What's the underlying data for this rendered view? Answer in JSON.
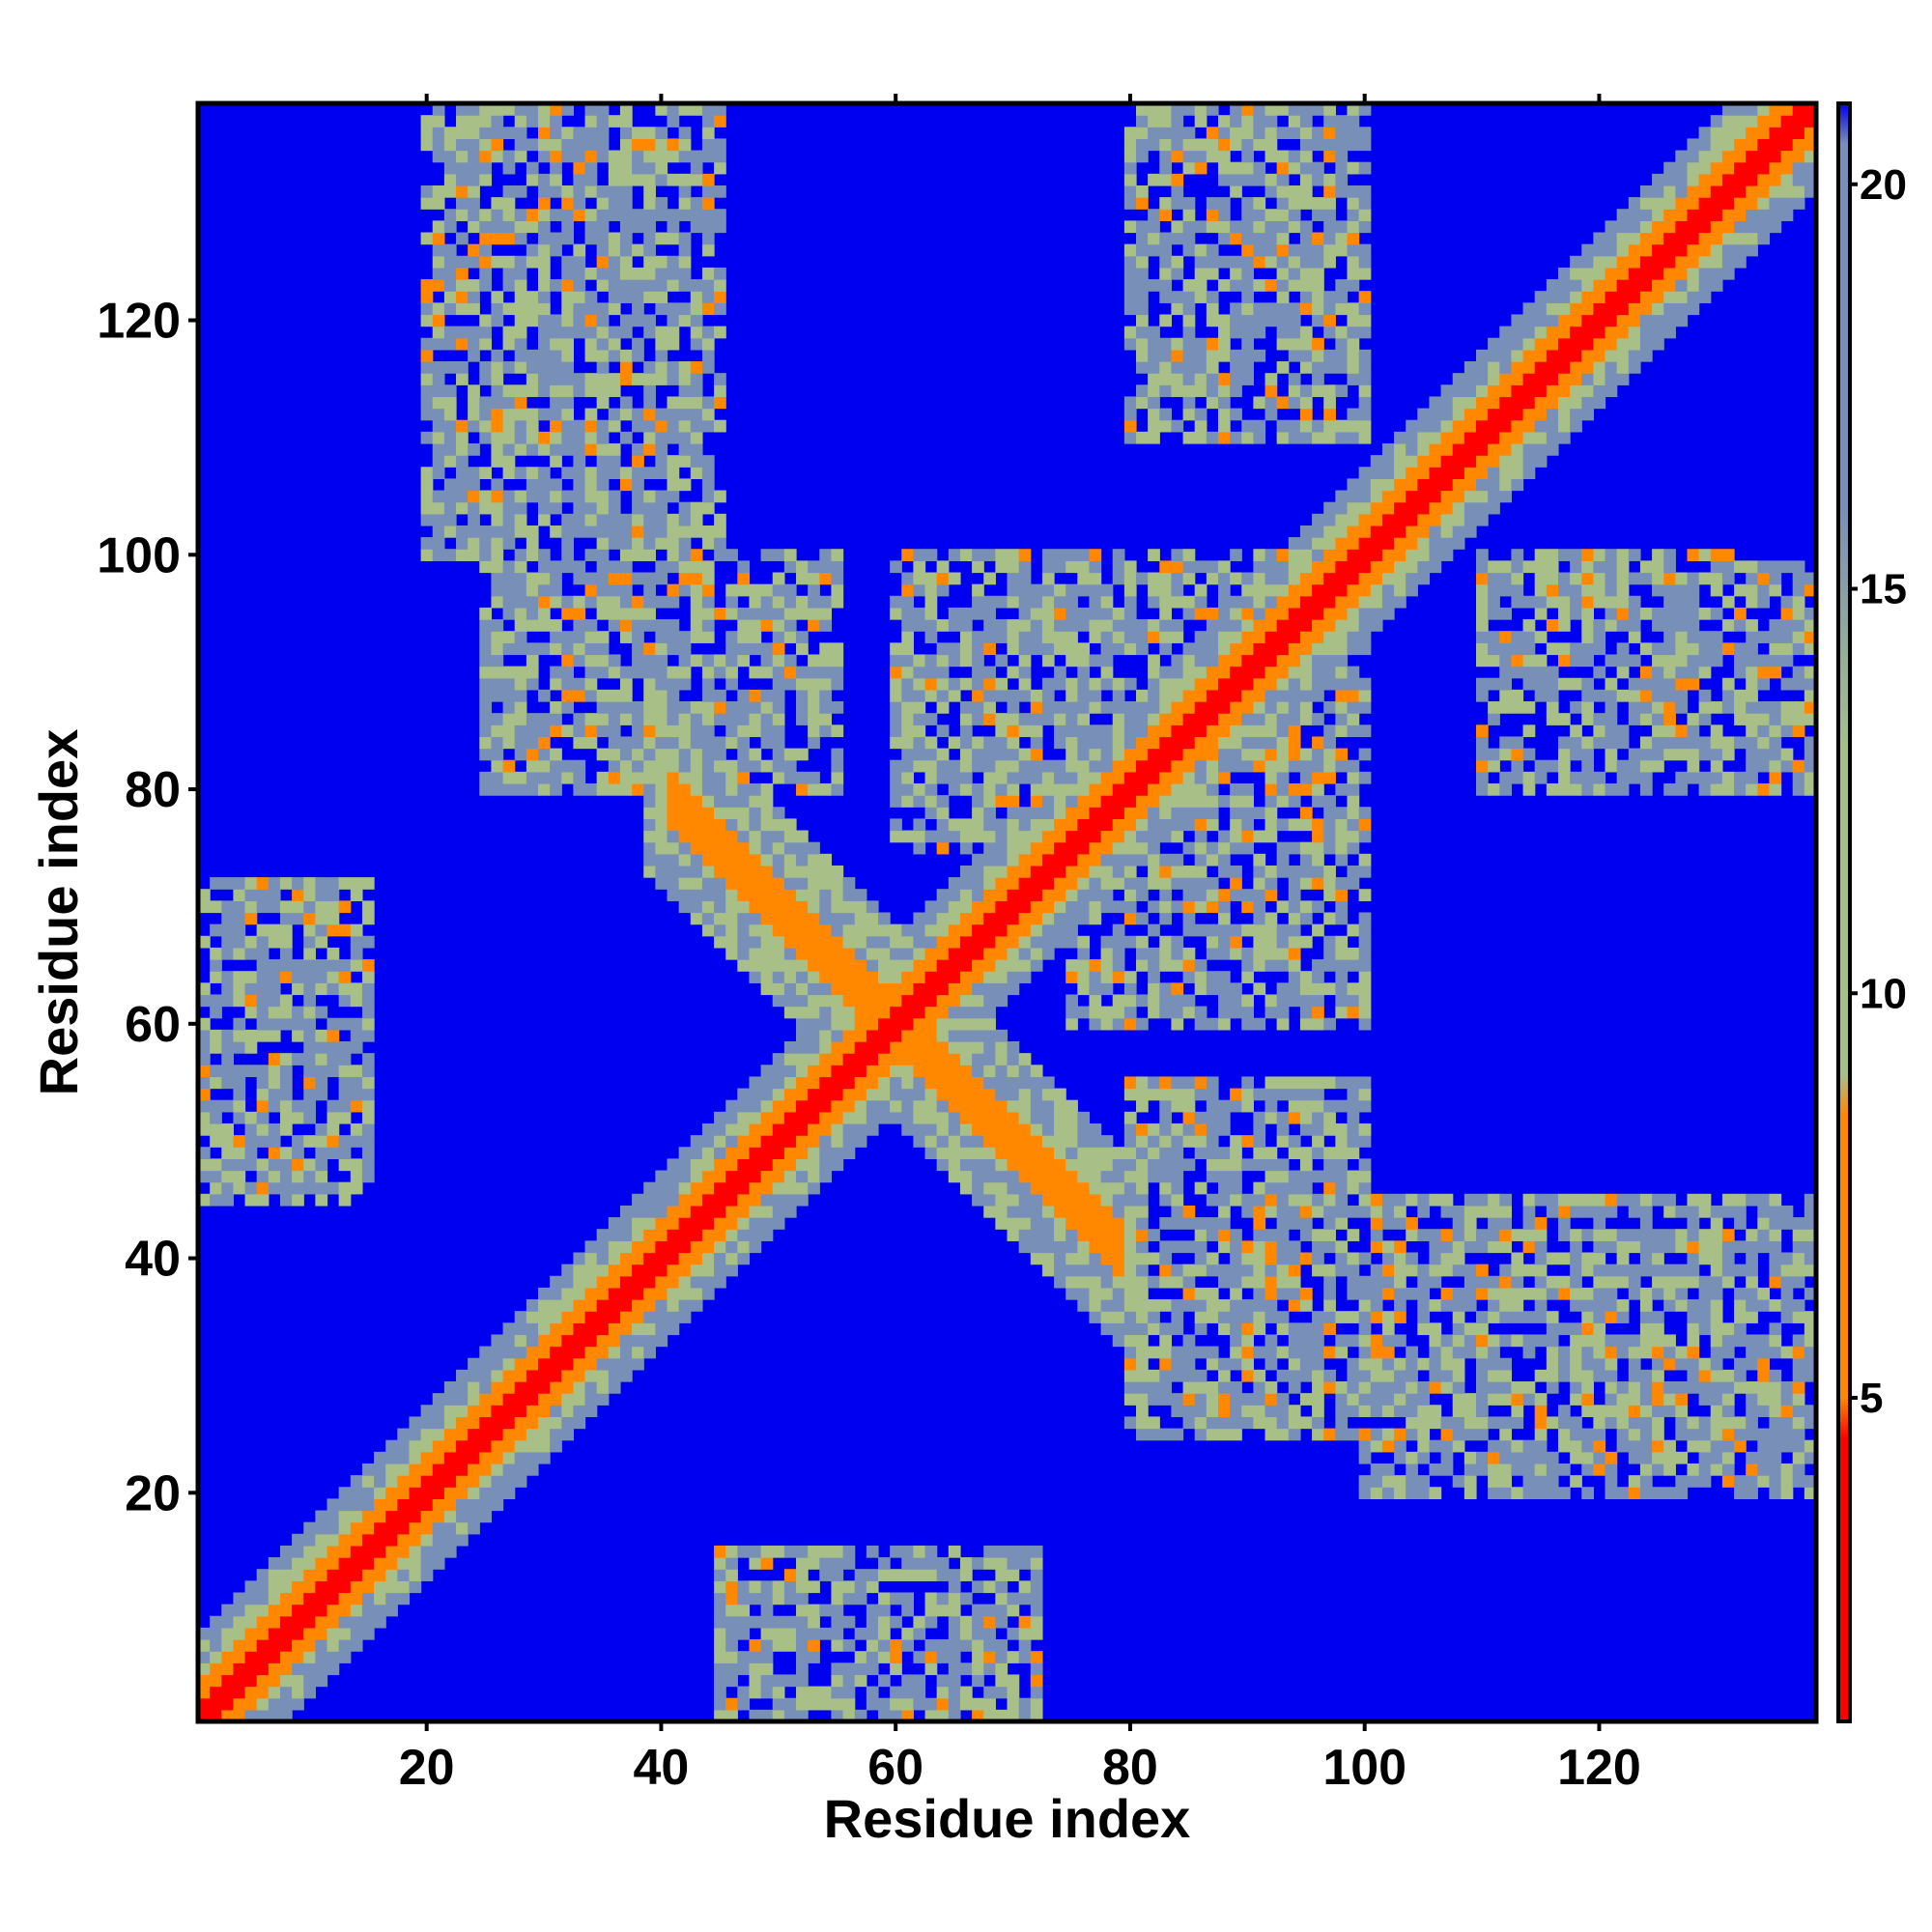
{
  "chart_data": {
    "type": "heatmap",
    "title": "",
    "xlabel": "Residue index",
    "ylabel": "Residue index",
    "n_residues": 138,
    "xlim": [
      1,
      138
    ],
    "ylim": [
      1,
      138
    ],
    "x_ticks": [
      20,
      40,
      60,
      80,
      100,
      120
    ],
    "y_ticks": [
      20,
      40,
      60,
      80,
      100,
      120
    ],
    "colorbar": {
      "range": [
        1,
        21
      ],
      "ticks": [
        5,
        10,
        15,
        20
      ],
      "placement": "right"
    },
    "grid": false,
    "colors": {
      "background": "#0000f0",
      "contact": "#ff0000",
      "near": "#ff8800",
      "mid": "#a8c088",
      "far": "#7890b8"
    },
    "contact_regions": [
      {
        "label": "diagonal band",
        "from": [
          1,
          1
        ],
        "to": [
          138,
          138
        ]
      },
      {
        "label": "anti-parallel feature",
        "center": [
          60,
          60
        ],
        "x_range": [
          40,
          78
        ],
        "y_range": [
          42,
          78
        ]
      },
      {
        "label": "off-diagonal block",
        "x_range": [
          1,
          15
        ],
        "y_range": [
          48,
          72
        ]
      },
      {
        "label": "off-diagonal block",
        "x_range": [
          25,
          55
        ],
        "y_range": [
          80,
          100
        ]
      },
      {
        "label": "off-diagonal block",
        "x_range": [
          45,
          70
        ],
        "y_range": [
          1,
          15
        ]
      },
      {
        "label": "off-diagonal block",
        "x_range": [
          80,
          100
        ],
        "y_range": [
          25,
          55
        ]
      },
      {
        "label": "off-diagonal block",
        "x_range": [
          80,
          100
        ],
        "y_range": [
          110,
          138
        ]
      },
      {
        "label": "off-diagonal block",
        "x_range": [
          110,
          138
        ],
        "y_range": [
          80,
          95
        ]
      }
    ]
  }
}
